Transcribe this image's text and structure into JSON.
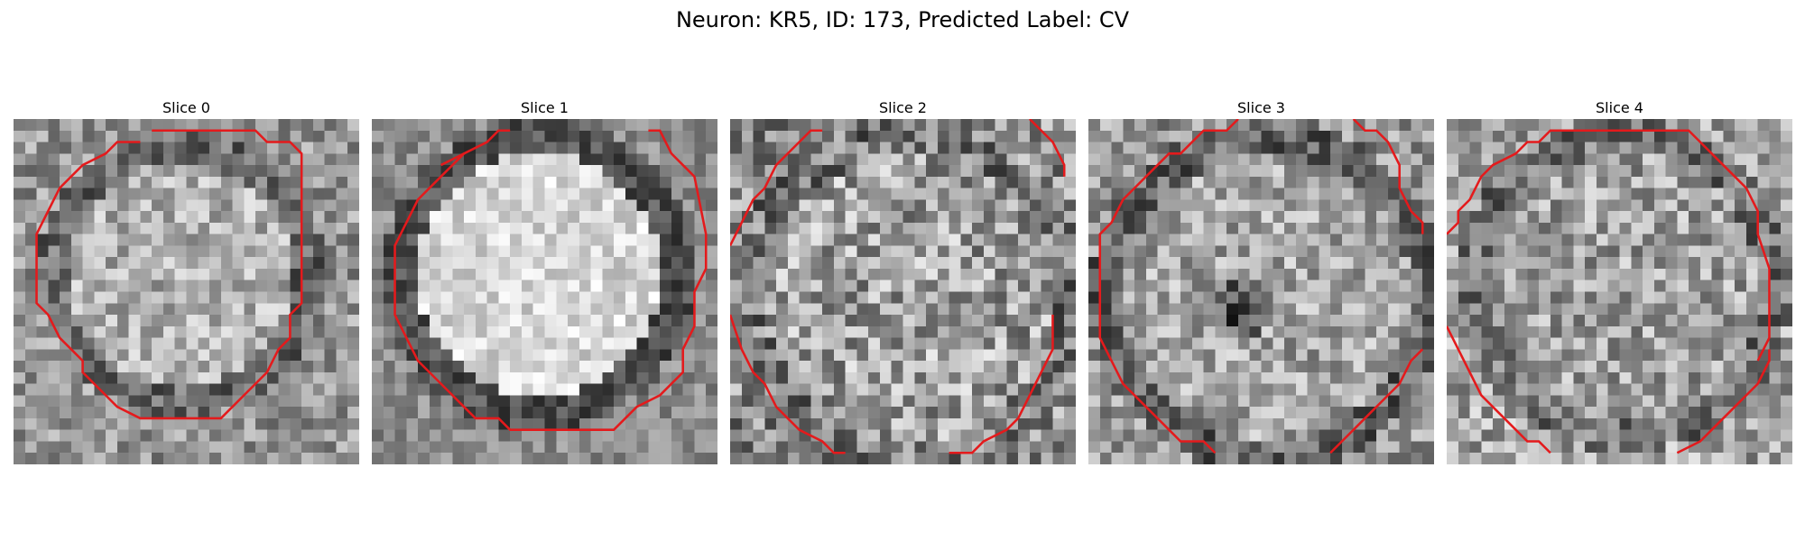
{
  "figure": {
    "title": "Neuron: KR5, ID: 173, Predicted Label: CV"
  },
  "panels": [
    {
      "title": "Slice 0",
      "overlay": "red contour outline"
    },
    {
      "title": "Slice 1",
      "overlay": "red contour outline"
    },
    {
      "title": "Slice 2",
      "overlay": "red contour outline"
    },
    {
      "title": "Slice 3",
      "overlay": "red contour outline"
    },
    {
      "title": "Slice 4",
      "overlay": "red contour outline"
    }
  ],
  "colors": {
    "contour": "#e41a1c",
    "colormap": "gray"
  }
}
